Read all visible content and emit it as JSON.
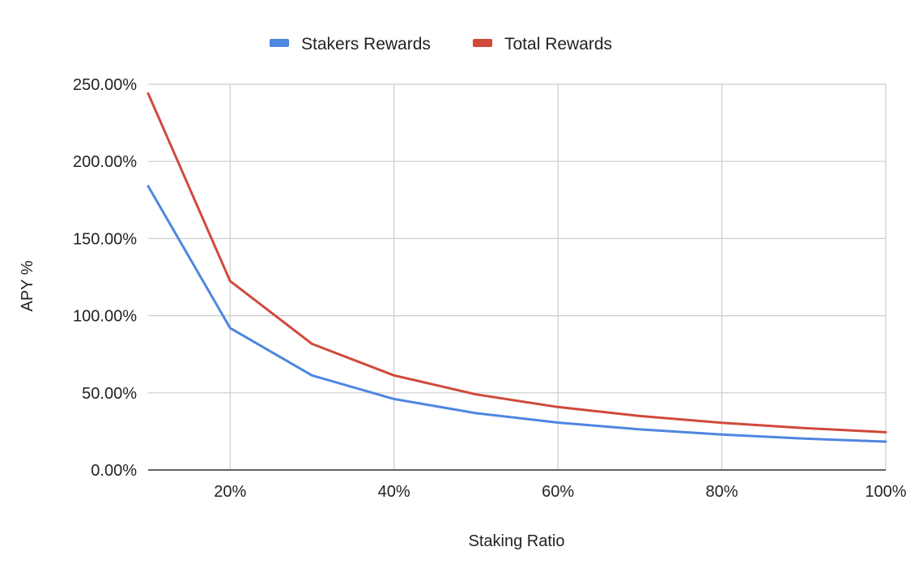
{
  "chart_data": {
    "type": "line",
    "title": "",
    "xlabel": "Staking Ratio",
    "ylabel": "APY %",
    "x": [
      10,
      20,
      30,
      40,
      50,
      60,
      70,
      80,
      90,
      100
    ],
    "x_unit": "%",
    "xlim": [
      10,
      100
    ],
    "x_ticks": [
      20,
      40,
      60,
      80,
      100
    ],
    "x_tick_labels": [
      "20%",
      "40%",
      "60%",
      "80%",
      "100%"
    ],
    "ylim": [
      0,
      250
    ],
    "y_ticks": [
      0,
      50,
      100,
      150,
      200,
      250
    ],
    "y_tick_labels": [
      "0.00%",
      "50.00%",
      "100.00%",
      "150.00%",
      "200.00%",
      "250.00%"
    ],
    "grid": true,
    "legend_position": "top-center",
    "series": [
      {
        "name": "Stakers Rewards",
        "color": "#4f86e0",
        "values": [
          184,
          92,
          61.3,
          46,
          36.8,
          30.7,
          26.3,
          23,
          20.4,
          18.4
        ]
      },
      {
        "name": "Total Rewards",
        "color": "#d0493b",
        "values": [
          244,
          122.5,
          81.7,
          61.3,
          49,
          40.8,
          35,
          30.6,
          27.2,
          24.5
        ]
      }
    ]
  }
}
